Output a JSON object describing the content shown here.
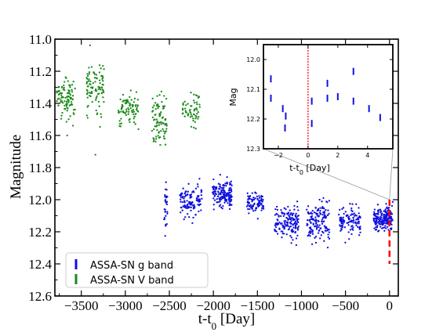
{
  "chart_data": [
    {
      "type": "scatter",
      "xlabel": "t-t0 [Day]",
      "ylabel": "Magnitude",
      "xlim": [
        -3800,
        100
      ],
      "ylim": [
        12.6,
        11.0
      ],
      "y_inverted": true,
      "x_ticks": [
        -3500,
        -3000,
        -2500,
        -2000,
        -1500,
        -1000,
        -500,
        0
      ],
      "x_tick_labels": [
        "−3500",
        "−3000",
        "−2500",
        "−2000",
        "−1500",
        "−1000",
        "−500",
        "0"
      ],
      "y_ticks": [
        11.0,
        11.2,
        11.4,
        11.6,
        11.8,
        12.0,
        12.2,
        12.4,
        12.6
      ],
      "y_tick_labels": [
        "11.0",
        "11.2",
        "11.4",
        "11.6",
        "11.8",
        "12.0",
        "12.2",
        "12.4",
        "12.6"
      ],
      "legend_position": "lower-left",
      "series": [
        {
          "name": "ASSA-SN V band",
          "color": "#1a8a1a",
          "marker": "dot",
          "seasons": [
            {
              "x_start": -3780,
              "x_end": -3570,
              "y_mean": 11.37,
              "y_spread": 0.12,
              "points": 95
            },
            {
              "x_start": -3440,
              "x_end": -3240,
              "y_mean": 11.32,
              "y_spread": 0.15,
              "points": 95
            },
            {
              "x_start": -3080,
              "x_end": -2850,
              "y_mean": 11.43,
              "y_spread": 0.1,
              "points": 85
            },
            {
              "x_start": -2700,
              "x_end": -2530,
              "y_mean": 11.49,
              "y_spread": 0.14,
              "points": 85
            },
            {
              "x_start": -2350,
              "x_end": -2150,
              "y_mean": 11.45,
              "y_spread": 0.09,
              "points": 60
            }
          ],
          "outliers": [
            {
              "x": -3660,
              "y": 11.6
            },
            {
              "x": -3340,
              "y": 11.72
            }
          ]
        },
        {
          "name": "ASSA-SN g band",
          "color": "#1010e0",
          "marker": "dot",
          "seasons": [
            {
              "x_start": -2560,
              "x_end": -2520,
              "y_mean": 12.06,
              "y_spread": 0.14,
              "points": 30
            },
            {
              "x_start": -2380,
              "x_end": -2130,
              "y_mean": 12.0,
              "y_spread": 0.09,
              "points": 120
            },
            {
              "x_start": -2010,
              "x_end": -1790,
              "y_mean": 11.96,
              "y_spread": 0.08,
              "points": 160
            },
            {
              "x_start": -1620,
              "x_end": -1430,
              "y_mean": 12.02,
              "y_spread": 0.06,
              "points": 90
            },
            {
              "x_start": -1310,
              "x_end": -1030,
              "y_mean": 12.14,
              "y_spread": 0.1,
              "points": 150
            },
            {
              "x_start": -940,
              "x_end": -680,
              "y_mean": 12.13,
              "y_spread": 0.11,
              "points": 150
            },
            {
              "x_start": -580,
              "x_end": -330,
              "y_mean": 12.13,
              "y_spread": 0.08,
              "points": 110
            },
            {
              "x_start": -180,
              "x_end": 40,
              "y_mean": 12.12,
              "y_spread": 0.06,
              "points": 200
            }
          ]
        }
      ],
      "annotations": [
        {
          "type": "vertical-dashed-line",
          "x": 0,
          "y_from": 12.0,
          "y_to": 12.4,
          "color": "#ff0000"
        }
      ]
    },
    {
      "type": "scatter",
      "xlabel": "t-t0 [Day]",
      "ylabel": "Mag",
      "xlim": [
        -3.0,
        5.7
      ],
      "ylim": [
        12.3,
        11.95
      ],
      "y_inverted": true,
      "x_ticks": [
        -2,
        0,
        2,
        4
      ],
      "x_tick_labels": [
        "−2",
        "0",
        "2",
        "4"
      ],
      "y_ticks": [
        12.0,
        12.1,
        12.2,
        12.3
      ],
      "y_tick_labels": [
        "12.0",
        "12.1",
        "12.2",
        "12.3"
      ],
      "series": [
        {
          "name": "ASSA-SN g band",
          "color": "#1010e0",
          "points": [
            {
              "x": -2.5,
              "y": 12.065
            },
            {
              "x": -2.5,
              "y": 12.13
            },
            {
              "x": -1.7,
              "y": 12.165
            },
            {
              "x": -1.5,
              "y": 12.19
            },
            {
              "x": -1.55,
              "y": 12.23
            },
            {
              "x": 0.25,
              "y": 12.14
            },
            {
              "x": 0.25,
              "y": 12.215
            },
            {
              "x": 1.3,
              "y": 12.08
            },
            {
              "x": 1.3,
              "y": 12.13
            },
            {
              "x": 2.0,
              "y": 12.125
            },
            {
              "x": 3.05,
              "y": 12.04
            },
            {
              "x": 3.05,
              "y": 12.14
            },
            {
              "x": 4.1,
              "y": 12.165
            },
            {
              "x": 4.85,
              "y": 12.195
            }
          ]
        }
      ],
      "annotations": [
        {
          "type": "vertical-dotted-line",
          "x": 0,
          "color": "#ff0000"
        }
      ]
    }
  ]
}
